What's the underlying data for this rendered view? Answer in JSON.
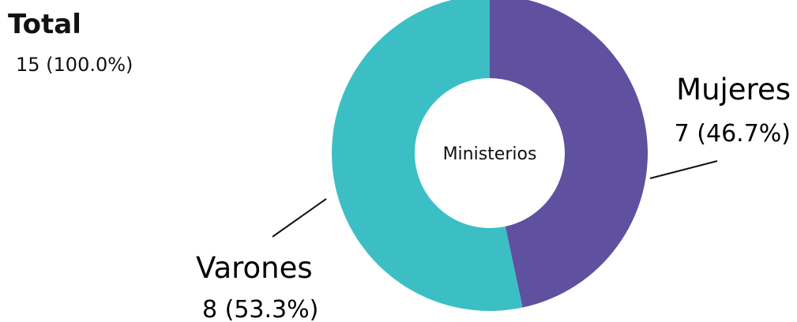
{
  "chart_data": {
    "type": "pie",
    "center_label": "Ministerios",
    "total": {
      "label": "Total",
      "value_text": "15 (100.0%)",
      "value": 15
    },
    "slices": [
      {
        "name": "Mujeres",
        "value": 7,
        "value_text": "7 (46.7%)",
        "color": "#5f50a0"
      },
      {
        "name": "Varones",
        "value": 8,
        "value_text": "8  (53.3%)",
        "color": "#3bbfc4"
      }
    ]
  }
}
